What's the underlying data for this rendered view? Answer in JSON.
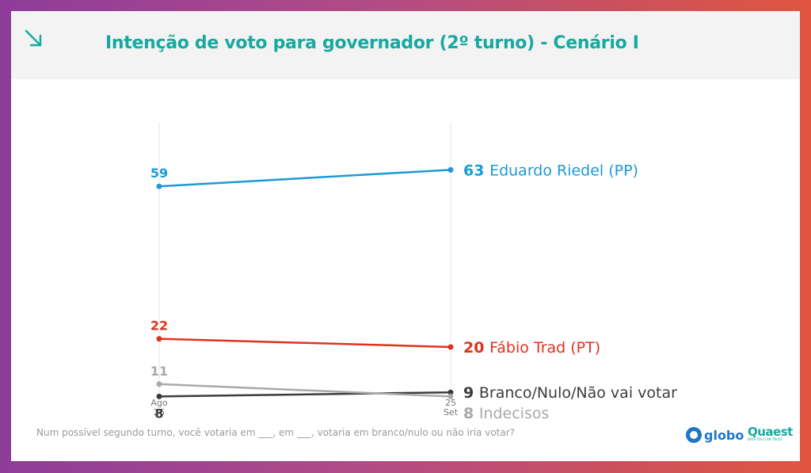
{
  "header": {
    "title": "Intenção de voto para governador (2º turno) - Cenário I",
    "icon": "arrow-down-right-icon"
  },
  "footnote": "Num possível segundo turno, você votaria em ___, em ___, votaria em branco/nulo ou não iria votar?",
  "logos": {
    "globo": "globo",
    "quaest": "Quaest",
    "quaest_tagline": "DATA YOU CAN TRUST"
  },
  "chart_data": {
    "type": "line",
    "x": [
      "26 Ago",
      "25 Set"
    ],
    "x_ticks": [
      {
        "day": "",
        "month": "Ago",
        "day_after": "26"
      },
      {
        "day": "25",
        "month": "Set",
        "day_after": ""
      }
    ],
    "ylim": [
      0,
      70
    ],
    "grid": false,
    "legend": "end-labels",
    "series": [
      {
        "name": "Eduardo Riedel (PP)",
        "values": [
          59,
          63
        ],
        "color": "#1b9ad6",
        "start_label": "59",
        "end_label": "63",
        "label_below_start": false
      },
      {
        "name": "Fábio Trad (PT)",
        "values": [
          22,
          20
        ],
        "color": "#e0321e",
        "start_label": "22",
        "end_label": "20",
        "label_below_start": false
      },
      {
        "name": "Branco/Nulo/Não vai votar",
        "values": [
          8,
          9
        ],
        "color": "#3c3c3c",
        "start_label": "8",
        "end_label": "9",
        "label_below_start": true
      },
      {
        "name": "Indecisos",
        "values": [
          11,
          8
        ],
        "color": "#a9a9a9",
        "start_label": "11",
        "end_label": "8",
        "label_below_start": false
      }
    ]
  }
}
